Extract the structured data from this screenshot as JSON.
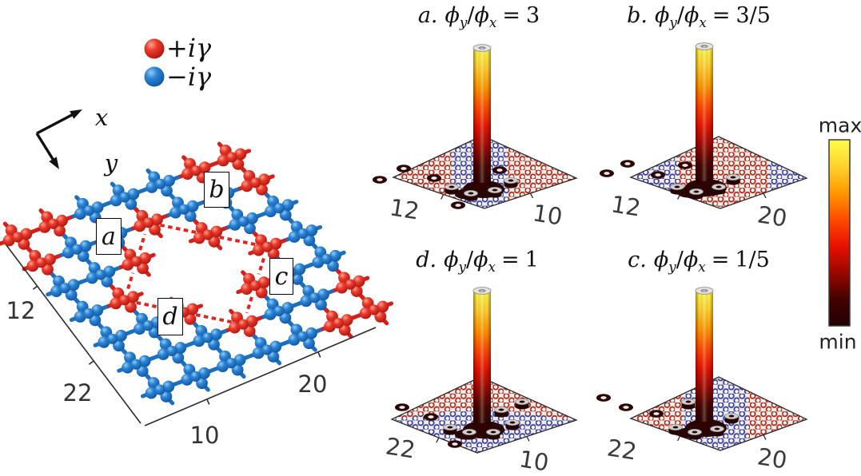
{
  "legend": {
    "items": [
      {
        "id": "gain",
        "symbol": "red-sphere",
        "color": "#e02420",
        "label": "+iγ"
      },
      {
        "id": "loss",
        "symbol": "blue-sphere",
        "color": "#1d7bd1",
        "label": "−iγ"
      }
    ]
  },
  "axes_triad": {
    "x_label": "x",
    "y_label": "y"
  },
  "lattice": {
    "colors": {
      "gain": "#e02420",
      "loss": "#1d7bd1"
    },
    "grid_map": [
      "RRBBBRR",
      "RBBRBBR",
      "BBRWRBB",
      "BRWWWRB",
      "BBRWRBB",
      "RBBRBBB",
      "RRBBBBB"
    ],
    "region_labels": [
      {
        "id": "a",
        "text": "a"
      },
      {
        "id": "b",
        "text": "b"
      },
      {
        "id": "c",
        "text": "c"
      },
      {
        "id": "d",
        "text": "d"
      }
    ],
    "ticks": {
      "y_axis": [
        "12",
        "22"
      ],
      "x_axis": [
        "10",
        "20"
      ]
    }
  },
  "math": {
    "phi": "ϕ",
    "sub_y": "y",
    "sub_x": "x",
    "slash": "/",
    "equals": "="
  },
  "panels": [
    {
      "id": "a",
      "label": "a.",
      "ratio": "3",
      "y_tick": "12",
      "x_tick": "10"
    },
    {
      "id": "b",
      "label": "b.",
      "ratio": "3/5",
      "y_tick": "12",
      "x_tick": "20"
    },
    {
      "id": "d",
      "label": "d.",
      "ratio": "1",
      "y_tick": "22",
      "x_tick": "10"
    },
    {
      "id": "c",
      "label": "c.",
      "ratio": "1/5",
      "y_tick": "22",
      "x_tick": "20"
    }
  ],
  "colorbar": {
    "max_label": "max",
    "min_label": "min",
    "gradient": [
      "#fdfd4a",
      "#ffd22e",
      "#ff9800",
      "#ff4a00",
      "#e81000",
      "#9a0700",
      "#420200",
      "#240000"
    ]
  },
  "chart_data": {
    "figure_type": "multi-panel physics figure",
    "lattice_schematic": {
      "type": "diagram",
      "description": "2D lattice of gain sites (+iγ, red) and loss sites (−iγ, blue) arranged in domains labeled a, b, c, d",
      "y_ticks": [
        12,
        22
      ],
      "x_ticks": [
        10,
        20
      ]
    },
    "bar_plots": [
      {
        "type": "bar3d",
        "panel": "a",
        "title": "a. ϕ_y/ϕ_x = 3",
        "flux_ratio": "3",
        "y_tick": 12,
        "x_tick": 10,
        "peak": {
          "x": 10,
          "y": 12,
          "value": "max"
        },
        "background": "≈ min everywhere else",
        "colormap": "dark red (min) to yellow (max)"
      },
      {
        "type": "bar3d",
        "panel": "b",
        "title": "b. ϕ_y/ϕ_x = 3/5",
        "flux_ratio": "3/5",
        "y_tick": 12,
        "x_tick": 20,
        "peak": {
          "x": 20,
          "y": 12,
          "value": "max"
        },
        "background": "≈ min everywhere else",
        "colormap": "dark red (min) to yellow (max)"
      },
      {
        "type": "bar3d",
        "panel": "d",
        "title": "d. ϕ_y/ϕ_x = 1",
        "flux_ratio": "1",
        "y_tick": 22,
        "x_tick": 10,
        "peak": {
          "x": 10,
          "y": 22,
          "value": "max"
        },
        "background": "≈ min everywhere else",
        "colormap": "dark red (min) to yellow (max)"
      },
      {
        "type": "bar3d",
        "panel": "c",
        "title": "c. ϕ_y/ϕ_x = 1/5",
        "flux_ratio": "1/5",
        "y_tick": 22,
        "x_tick": 20,
        "peak": {
          "x": 20,
          "y": 22,
          "value": "max"
        },
        "background": "≈ min everywhere else",
        "colormap": "dark red (min) to yellow (max)"
      }
    ],
    "colorbar": {
      "scale": "linear",
      "labels": [
        "min",
        "max"
      ]
    }
  }
}
